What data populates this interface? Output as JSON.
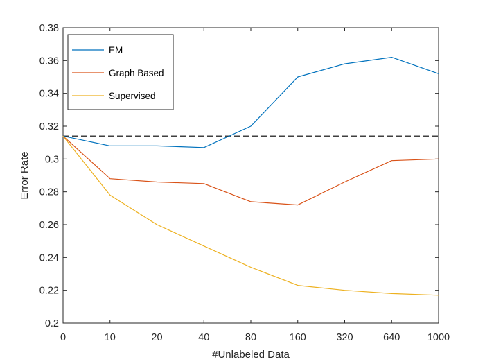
{
  "chart_data": {
    "type": "line",
    "xlabel": "#Unlabeled Data",
    "ylabel": "Error Rate",
    "categories": [
      "0",
      "10",
      "20",
      "40",
      "80",
      "160",
      "320",
      "640",
      "1000"
    ],
    "ylim": [
      0.2,
      0.38
    ],
    "yticks": [
      "0.2",
      "0.22",
      "0.24",
      "0.26",
      "0.28",
      "0.3",
      "0.32",
      "0.34",
      "0.36",
      "0.38"
    ],
    "grid": false,
    "legend_position": "top-left",
    "series": [
      {
        "name": "EM",
        "color": "#0072BD",
        "values": [
          0.314,
          0.308,
          0.308,
          0.307,
          0.32,
          0.35,
          0.358,
          0.362,
          0.352
        ]
      },
      {
        "name": "Graph Based",
        "color": "#D95319",
        "values": [
          0.314,
          0.288,
          0.286,
          0.285,
          0.274,
          0.272,
          0.286,
          0.299,
          0.3
        ]
      },
      {
        "name": "Supervised",
        "color": "#EDB120",
        "values": [
          0.314,
          0.278,
          0.26,
          0.247,
          0.234,
          0.223,
          0.22,
          0.218,
          0.217
        ]
      }
    ],
    "reference_line": {
      "y": 0.314,
      "style": "dashed",
      "color": "#000000"
    }
  }
}
